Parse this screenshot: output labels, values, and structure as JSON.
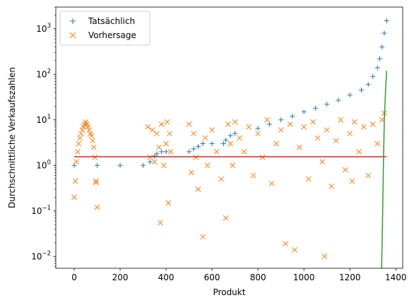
{
  "chart_data": {
    "type": "scatter",
    "xlabel": "Produkt",
    "ylabel": "Durchschnittliche Verkaufszahlen",
    "yscale": "log",
    "xlim": [
      -80,
      1430
    ],
    "ylim": [
      0.0055,
      3000
    ],
    "x_ticks": [
      0,
      200,
      400,
      600,
      800,
      1000,
      1200,
      1400
    ],
    "y_ticks": [
      {
        "value": 0.01,
        "base": "10",
        "exp": "−2"
      },
      {
        "value": 0.1,
        "base": "10",
        "exp": "−1"
      },
      {
        "value": 1,
        "base": "10",
        "exp": "0"
      },
      {
        "value": 10,
        "base": "10",
        "exp": "1"
      },
      {
        "value": 100,
        "base": "10",
        "exp": "2"
      },
      {
        "value": 1000,
        "base": "10",
        "exp": "3"
      }
    ],
    "legend": {
      "position": "top-left",
      "entries": [
        {
          "label": "Tatsächlich",
          "marker": "plus",
          "color": "#1f77b4"
        },
        {
          "label": "Vorhersage",
          "marker": "x",
          "color": "#ff7f0e"
        }
      ]
    },
    "series": [
      {
        "name": "Tatsächlich",
        "marker": "plus",
        "color": "#1f77b4",
        "x": [
          0,
          100,
          200,
          300,
          330,
          350,
          360,
          380,
          400,
          500,
          520,
          540,
          560,
          600,
          650,
          660,
          680,
          700,
          800,
          850,
          900,
          950,
          1000,
          1050,
          1100,
          1150,
          1200,
          1250,
          1280,
          1300,
          1320,
          1330,
          1340,
          1350,
          1360
        ],
        "y": [
          1.0,
          1.0,
          1.0,
          1.0,
          1.2,
          1.6,
          1.8,
          2.0,
          2.0,
          2.0,
          2.3,
          2.6,
          3.0,
          3.0,
          3.0,
          3.6,
          4.5,
          5.0,
          6.5,
          8.0,
          10.0,
          12.0,
          15.0,
          18.0,
          22.0,
          27.0,
          35.0,
          45.0,
          60.0,
          90.0,
          140.0,
          220.0,
          400.0,
          800.0,
          1500.0
        ]
      },
      {
        "name": "Vorhersage",
        "marker": "x",
        "color": "#ff7f0e",
        "x": [
          0,
          5,
          10,
          15,
          20,
          25,
          30,
          35,
          40,
          45,
          50,
          55,
          60,
          65,
          70,
          75,
          80,
          85,
          90,
          95,
          100,
          95,
          320,
          330,
          340,
          350,
          360,
          370,
          375,
          380,
          390,
          400,
          405,
          410,
          415,
          420,
          500,
          510,
          520,
          530,
          540,
          560,
          570,
          580,
          600,
          620,
          640,
          660,
          670,
          680,
          690,
          700,
          720,
          740,
          760,
          780,
          800,
          820,
          840,
          860,
          880,
          900,
          920,
          940,
          960,
          980,
          1000,
          1020,
          1040,
          1060,
          1080,
          1090,
          1100,
          1120,
          1140,
          1160,
          1180,
          1200,
          1210,
          1220,
          1240,
          1260,
          1280,
          1300,
          1320,
          1340,
          1350
        ],
        "y": [
          0.2,
          0.45,
          1.2,
          2.0,
          3.0,
          4.0,
          5.0,
          6.0,
          7.0,
          8.0,
          9.0,
          8.0,
          7.0,
          6.0,
          5.0,
          4.5,
          3.5,
          2.5,
          1.5,
          0.45,
          0.12,
          0.42,
          7.0,
          1.5,
          6.0,
          1.2,
          5.0,
          2.5,
          0.055,
          8.0,
          1.0,
          3.0,
          9.0,
          0.15,
          5.0,
          2.0,
          8.0,
          0.7,
          5.0,
          1.5,
          0.3,
          0.027,
          4.0,
          1.0,
          6.0,
          2.0,
          0.5,
          0.07,
          8.0,
          3.0,
          1.0,
          9.0,
          4.0,
          2.0,
          7.0,
          0.6,
          5.0,
          1.5,
          10.0,
          0.4,
          3.0,
          6.0,
          0.019,
          8.0,
          0.014,
          2.5,
          7.0,
          0.5,
          9.0,
          4.0,
          1.2,
          0.01,
          6.0,
          0.35,
          3.5,
          10.0,
          0.8,
          5.0,
          0.45,
          9.0,
          2.0,
          7.0,
          0.6,
          8.0,
          3.0,
          10.0,
          14.0
        ]
      },
      {
        "name": "",
        "type": "line",
        "color": "#d62728",
        "x": [
          0,
          1360
        ],
        "y": [
          1.55,
          1.55
        ]
      },
      {
        "name": "",
        "type": "line",
        "color": "#2ca02c",
        "x": [
          1338,
          1342,
          1346,
          1350,
          1355,
          1360
        ],
        "y": [
          0.005,
          0.05,
          1.0,
          10.0,
          40.0,
          120.0
        ]
      }
    ]
  }
}
